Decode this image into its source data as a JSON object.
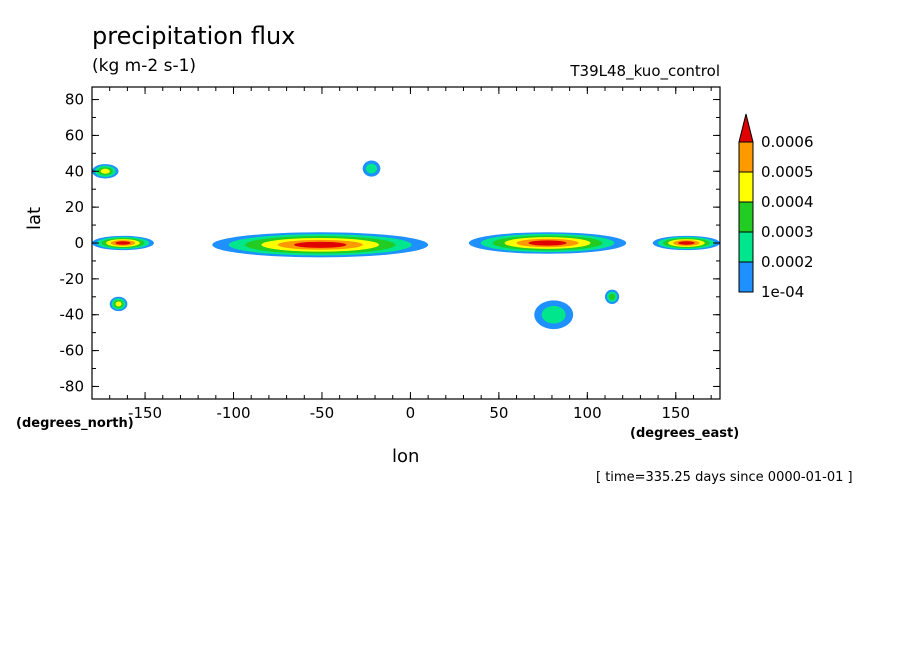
{
  "chart_data": {
    "type": "heatmap",
    "title": "precipitation flux",
    "subtitle": "(kg m-2 s-1)",
    "run_label": "T39L48_kuo_control",
    "xlabel": "lon",
    "ylabel": "lat",
    "x_units": "(degrees_east)",
    "y_units": "(degrees_north)",
    "xlim": [
      -180,
      175
    ],
    "ylim": [
      -87,
      87
    ],
    "x_ticks": [
      -150,
      -100,
      -50,
      0,
      50,
      100,
      150
    ],
    "x_tick_labels": [
      "-150",
      "-100",
      "-50",
      "0",
      "50",
      "100",
      "150"
    ],
    "y_ticks": [
      80,
      60,
      40,
      20,
      0,
      -20,
      -40,
      -60,
      -80
    ],
    "y_tick_labels": [
      "80",
      "60",
      "40",
      "20",
      "0",
      "-20",
      "-40",
      "-60",
      "-80"
    ],
    "grid": false,
    "time_annotation": "[ time=335.25 days since 0000-01-01 ]",
    "colorbar": {
      "position": "right",
      "levels": [
        0.0001,
        0.0002,
        0.0003,
        0.0004,
        0.0005,
        0.0006
      ],
      "labels": [
        "1e-04",
        "0.0002",
        "0.0003",
        "0.0004",
        "0.0005",
        "0.0006"
      ],
      "colors": [
        "#1e90ff",
        "#00e68c",
        "#22cc22",
        "#ffff00",
        "#ff9900",
        "#e00000"
      ],
      "extend": "max"
    },
    "features": [
      {
        "lon_min": -180,
        "lon_max": -145,
        "lat_min": -4,
        "lat_max": 4,
        "peak": 0.0006
      },
      {
        "lon_min": -112,
        "lon_max": 10,
        "lat_min": -8,
        "lat_max": 6,
        "peak": 0.0006
      },
      {
        "lon_min": 33,
        "lon_max": 122,
        "lat_min": -6,
        "lat_max": 6,
        "peak": 0.0006
      },
      {
        "lon_min": 137,
        "lon_max": 175,
        "lat_min": -4,
        "lat_max": 4,
        "peak": 0.0006
      },
      {
        "lon_min": -180,
        "lon_max": -165,
        "lat_min": 36,
        "lat_max": 44,
        "peak": 0.0004
      },
      {
        "lon_min": -27,
        "lon_max": -17,
        "lat_min": 37,
        "lat_max": 46,
        "peak": 0.0002
      },
      {
        "lon_min": -170,
        "lon_max": -160,
        "lat_min": -38,
        "lat_max": -30,
        "peak": 0.0004
      },
      {
        "lon_min": 70,
        "lon_max": 92,
        "lat_min": -48,
        "lat_max": -32,
        "peak": 0.0002
      },
      {
        "lon_min": 110,
        "lon_max": 118,
        "lat_min": -34,
        "lat_max": -26,
        "peak": 0.0003
      }
    ]
  }
}
